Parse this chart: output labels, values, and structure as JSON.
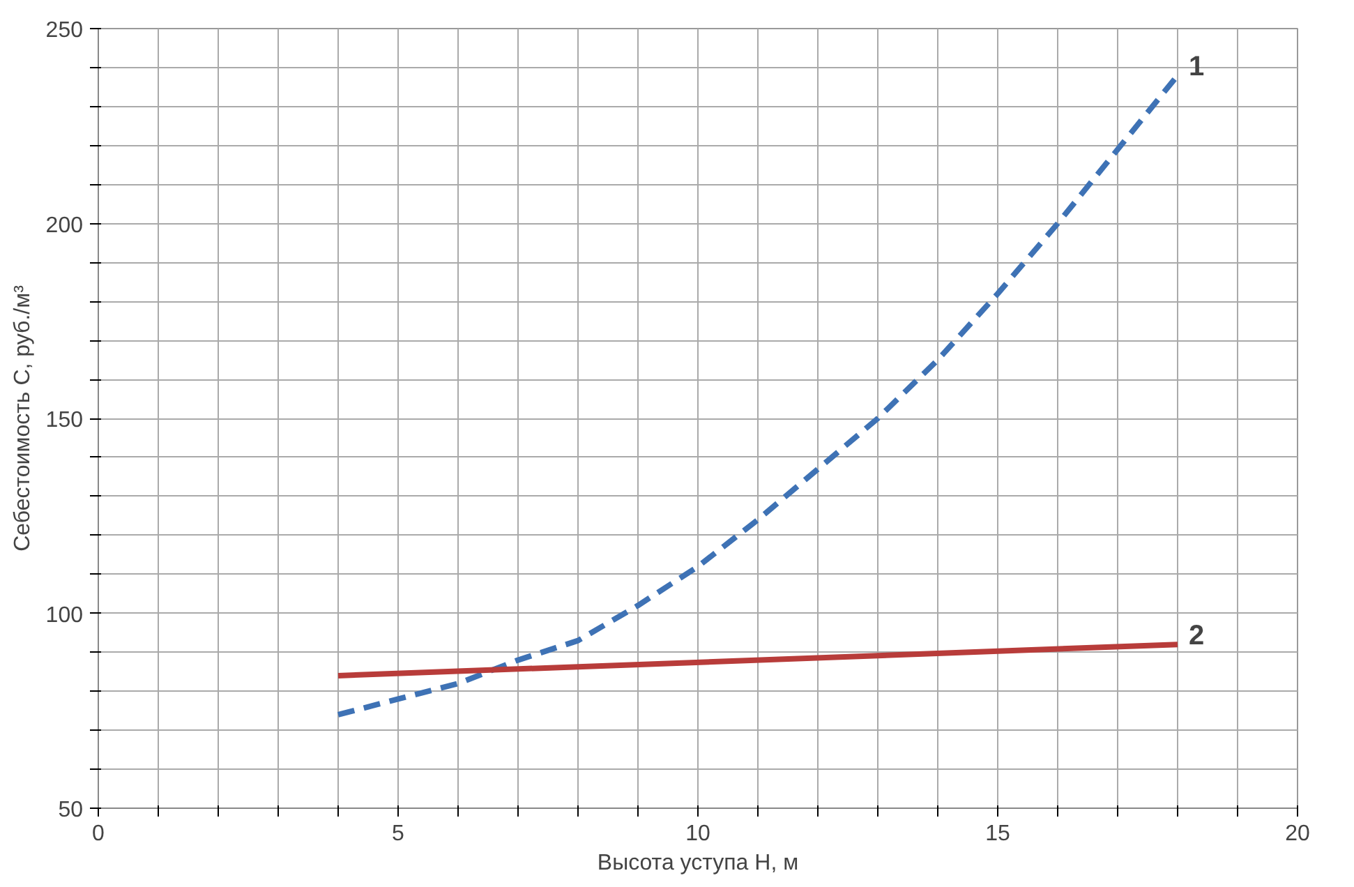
{
  "chart_data": {
    "type": "line",
    "xlabel": "Высота уступа H, м",
    "ylabel": "Себестоимость C, руб./м³",
    "x": [
      4,
      5,
      6,
      7,
      8,
      9,
      10,
      11,
      12,
      13,
      14,
      15,
      16,
      17,
      18
    ],
    "series": [
      {
        "color": "#3e72b5",
        "line_style": "dashed",
        "values": [
          74,
          78,
          82,
          88,
          93,
          102,
          112,
          124,
          137,
          150,
          165,
          182,
          200,
          219,
          238
        ]
      },
      {
        "color": "#b83c3a",
        "line_style": "solid",
        "x": [
          4,
          18
        ],
        "values": [
          84,
          92
        ]
      }
    ],
    "annotations": [
      {
        "text": "1",
        "x": 18,
        "y": 238
      },
      {
        "text": "2",
        "x": 18,
        "y": 92
      }
    ],
    "xlim": [
      0,
      20
    ],
    "ylim": [
      50,
      250
    ],
    "xticks": [
      0,
      {
        "value": 1,
        "label": null
      },
      {
        "value": 2,
        "label": null
      },
      {
        "value": 3,
        "label": null
      },
      {
        "value": 4,
        "label": null
      },
      5,
      {
        "value": 6,
        "label": null
      },
      {
        "value": 7,
        "label": null
      },
      {
        "value": 8,
        "label": null
      },
      {
        "value": 9,
        "label": null
      },
      10,
      {
        "value": 11,
        "label": null
      },
      {
        "value": 12,
        "label": null
      },
      {
        "value": 13,
        "label": null
      },
      {
        "value": 14,
        "label": null
      },
      15,
      {
        "value": 16,
        "label": null
      },
      {
        "value": 17,
        "label": null
      },
      {
        "value": 18,
        "label": null
      },
      {
        "value": 19,
        "label": null
      },
      20
    ],
    "yticks": [
      50,
      {
        "value": 60,
        "label": null
      },
      {
        "value": 70,
        "label": null
      },
      {
        "value": 80,
        "label": null
      },
      {
        "value": 90,
        "label": null
      },
      100,
      {
        "value": 110,
        "label": null
      },
      {
        "value": 120,
        "label": null
      },
      {
        "value": 130,
        "label": null
      },
      {
        "value": 140,
        "label": null
      },
      150,
      {
        "value": 160,
        "label": null
      },
      {
        "value": 170,
        "label": null
      },
      {
        "value": 180,
        "label": null
      },
      {
        "value": 190,
        "label": null
      },
      200,
      {
        "value": 210,
        "label": null
      },
      {
        "value": 220,
        "label": null
      },
      {
        "value": 230,
        "label": null
      },
      {
        "value": 240,
        "label": null
      },
      250
    ],
    "grid": true
  }
}
